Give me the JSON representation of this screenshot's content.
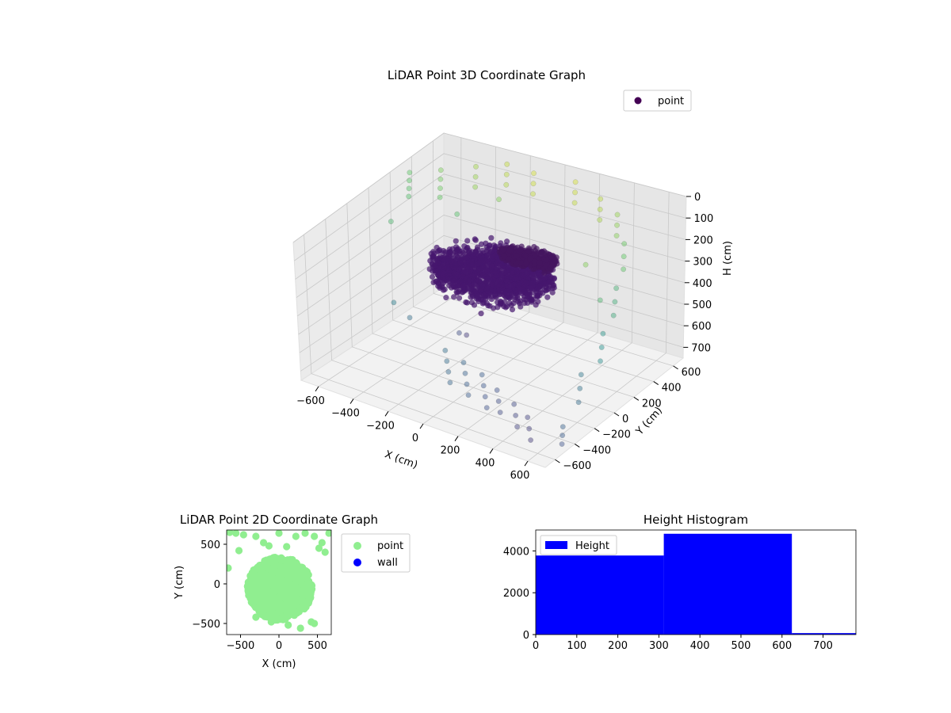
{
  "figure": {
    "background": "#ffffff"
  },
  "chart_data": [
    {
      "id": "scatter3d",
      "type": "scatter",
      "title": "LiDAR Point 3D Coordinate Graph",
      "xlabel": "X (cm)",
      "ylabel": "Y (cm)",
      "zlabel": "H (cm)",
      "xlim": [
        -700,
        700
      ],
      "ylim": [
        -700,
        700
      ],
      "zlim": [
        0,
        750
      ],
      "z_inverted": true,
      "xticks": [
        -600,
        -400,
        -200,
        0,
        200,
        400,
        600
      ],
      "yticks": [
        -600,
        -400,
        -200,
        0,
        200,
        400,
        600
      ],
      "zticks": [
        0,
        100,
        200,
        300,
        400,
        500,
        600,
        700
      ],
      "colormap": "viridis",
      "grid": true,
      "legend": {
        "placement": "top-right",
        "entries": [
          {
            "label": "point",
            "color": "#440154"
          }
        ]
      },
      "series": [
        {
          "name": "point",
          "clusters": [
            {
              "kind": "blob",
              "center": [
                -40,
                60,
                300
              ],
              "radius": [
                330,
                240,
                60
              ],
              "count": 1400,
              "color": "#46176d"
            },
            {
              "kind": "blob",
              "center": [
                140,
                110,
                200
              ],
              "radius": [
                160,
                90,
                20
              ],
              "count": 350,
              "color": "#44155f"
            }
          ],
          "samples": [
            [
              -650,
              300,
              30
            ],
            [
              -640,
              280,
              60
            ],
            [
              -630,
              260,
              90
            ],
            [
              -620,
              240,
              120
            ],
            [
              -520,
              380,
              20
            ],
            [
              -510,
              360,
              55
            ],
            [
              -500,
              340,
              90
            ],
            [
              -490,
              320,
              125
            ],
            [
              -380,
              480,
              10
            ],
            [
              -370,
              460,
              50
            ],
            [
              -360,
              440,
              90
            ],
            [
              -250,
              560,
              0
            ],
            [
              -240,
              540,
              40
            ],
            [
              -230,
              520,
              80
            ],
            [
              -120,
              600,
              30
            ],
            [
              -110,
              580,
              70
            ],
            [
              -100,
              560,
              110
            ],
            [
              120,
              600,
              20
            ],
            [
              130,
              580,
              60
            ],
            [
              140,
              560,
              100
            ],
            [
              300,
              540,
              40
            ],
            [
              310,
              520,
              80
            ],
            [
              320,
              500,
              120
            ],
            [
              450,
              450,
              50
            ],
            [
              460,
              430,
              90
            ],
            [
              470,
              410,
              130
            ],
            [
              560,
              330,
              120
            ],
            [
              570,
              310,
              170
            ],
            [
              580,
              290,
              220
            ],
            [
              620,
              150,
              250
            ],
            [
              630,
              120,
              300
            ],
            [
              640,
              90,
              350
            ],
            [
              660,
              -50,
              380
            ],
            [
              670,
              -80,
              430
            ],
            [
              680,
              -110,
              480
            ],
            [
              650,
              -250,
              500
            ],
            [
              660,
              -280,
              550
            ],
            [
              670,
              -310,
              600
            ],
            [
              -100,
              -300,
              560
            ],
            [
              -80,
              -320,
              600
            ],
            [
              -60,
              -340,
              640
            ],
            [
              -40,
              -360,
              680
            ],
            [
              40,
              -360,
              560
            ],
            [
              60,
              -380,
              600
            ],
            [
              80,
              -400,
              640
            ],
            [
              100,
              -420,
              680
            ],
            [
              180,
              -420,
              560
            ],
            [
              200,
              -440,
              600
            ],
            [
              220,
              -460,
              640
            ],
            [
              240,
              -480,
              680
            ],
            [
              300,
              -480,
              580
            ],
            [
              320,
              -500,
              620
            ],
            [
              340,
              -520,
              660
            ],
            [
              420,
              -520,
              600
            ],
            [
              440,
              -540,
              640
            ],
            [
              460,
              -560,
              680
            ],
            [
              520,
              -560,
              620
            ],
            [
              540,
              -580,
              660
            ],
            [
              560,
              -600,
              700
            ],
            [
              620,
              -380,
              700
            ],
            [
              640,
              -420,
              720
            ],
            [
              660,
              -460,
              740
            ],
            [
              -700,
              200,
              250
            ],
            [
              -450,
              -200,
              450
            ],
            [
              -300,
              -300,
              450
            ],
            [
              200,
              -600,
              300
            ],
            [
              300,
              400,
              300
            ],
            [
              500,
              200,
              350
            ],
            [
              -200,
              400,
              100
            ],
            [
              -350,
              250,
              150
            ],
            [
              100,
              -500,
              350
            ]
          ]
        }
      ]
    },
    {
      "id": "scatter2d",
      "type": "scatter",
      "title": "LiDAR Point 2D Coordinate Graph",
      "xlabel": "X (cm)",
      "ylabel": "Y (cm)",
      "xlim": [
        -680,
        680
      ],
      "ylim": [
        -640,
        680
      ],
      "xticks": [
        -500,
        0,
        500
      ],
      "yticks": [
        -500,
        0,
        500
      ],
      "legend": {
        "placement": "outside-right",
        "entries": [
          {
            "label": "point",
            "color": "#90ee90"
          },
          {
            "label": "wall",
            "color": "#0000ff"
          }
        ]
      },
      "series": [
        {
          "name": "point",
          "color": "#90ee90",
          "clusters": [
            {
              "kind": "blob",
              "center": [
                10,
                -60
              ],
              "radius": [
                420,
                400
              ],
              "count": 900
            }
          ],
          "samples": [
            [
              -640,
              650
            ],
            [
              -560,
              640
            ],
            [
              -460,
              620
            ],
            [
              -300,
              600
            ],
            [
              -200,
              520
            ],
            [
              -130,
              480
            ],
            [
              0,
              640
            ],
            [
              100,
              470
            ],
            [
              220,
              600
            ],
            [
              340,
              640
            ],
            [
              460,
              600
            ],
            [
              520,
              450
            ],
            [
              600,
              400
            ],
            [
              -660,
              200
            ],
            [
              420,
              -480
            ],
            [
              460,
              -500
            ],
            [
              280,
              -560
            ],
            [
              120,
              -520
            ],
            [
              -100,
              -480
            ],
            [
              -300,
              -420
            ],
            [
              650,
              640
            ],
            [
              -520,
              420
            ],
            [
              560,
              520
            ]
          ]
        },
        {
          "name": "wall",
          "color": "#0000ff",
          "values": []
        }
      ]
    },
    {
      "id": "histogram",
      "type": "bar",
      "title": "Height Histogram",
      "xlim": [
        0,
        780
      ],
      "ylim": [
        0,
        5000
      ],
      "xticks": [
        0,
        100,
        200,
        300,
        400,
        500,
        600,
        700
      ],
      "yticks": [
        0,
        2000,
        4000
      ],
      "legend": {
        "placement": "top-left",
        "entries": [
          {
            "label": "Height",
            "color": "#0000ff"
          }
        ]
      },
      "series": [
        {
          "name": "Height",
          "color": "#0000ff",
          "bins": [
            {
              "start": 0,
              "end": 312,
              "count": 3780
            },
            {
              "start": 312,
              "end": 624,
              "count": 4820
            },
            {
              "start": 624,
              "end": 780,
              "count": 70
            }
          ]
        }
      ]
    }
  ]
}
